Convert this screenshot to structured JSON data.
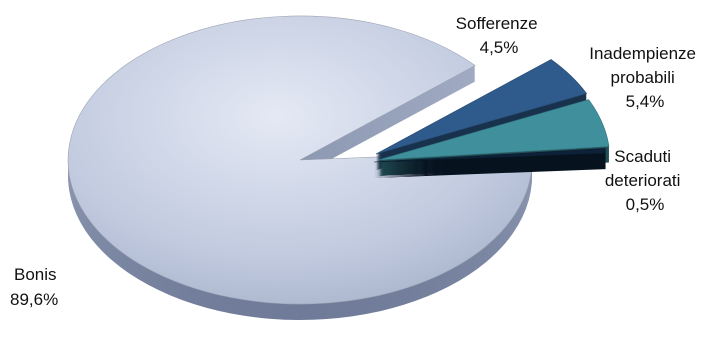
{
  "chart_data": {
    "type": "pie",
    "title": "",
    "categories": [
      "Sofferenze",
      "Inadempienze probabili",
      "Scaduti deteriorati",
      "Bonis"
    ],
    "values": [
      4.5,
      5.4,
      0.5,
      89.6
    ],
    "unit": "%",
    "value_labels": [
      "4,5%",
      "5,4%",
      "0,5%",
      "89,6%"
    ],
    "label_lines": [
      [
        "Sofferenze"
      ],
      [
        "Inadempienze",
        "probabili"
      ],
      [
        "Scaduti",
        "deteriorati"
      ],
      [
        "Bonis"
      ]
    ],
    "colors": [
      "#2e5a8c",
      "#3f8f9c",
      "#0d2238",
      "#c4cce0"
    ],
    "legend": "none",
    "style": "3d-exploded"
  }
}
